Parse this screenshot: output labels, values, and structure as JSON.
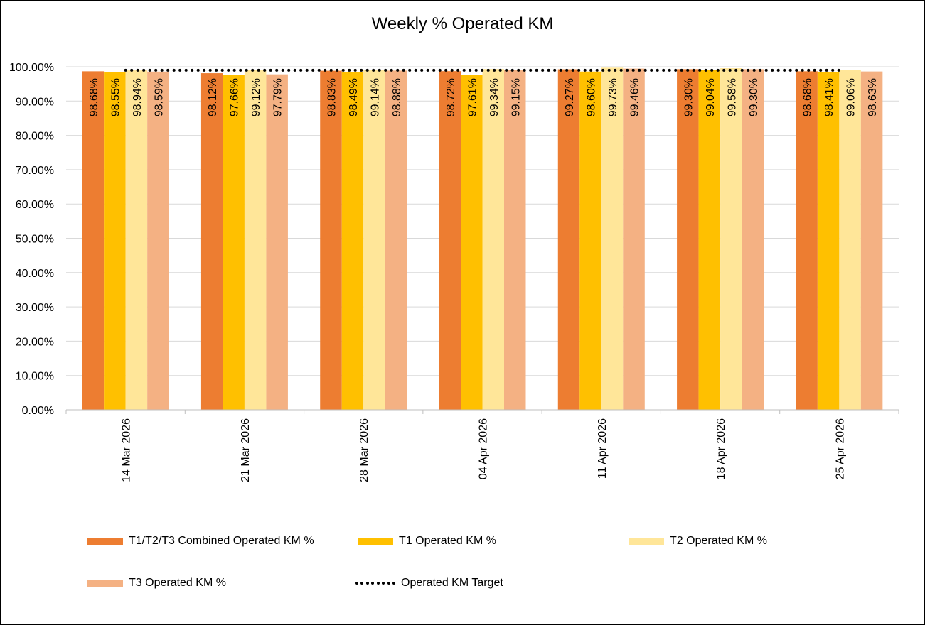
{
  "chart_data": {
    "type": "bar",
    "title": "Weekly % Operated KM",
    "categories": [
      "14 Mar 2026",
      "21 Mar 2026",
      "28 Mar 2026",
      "04 Apr 2026",
      "11 Apr 2026",
      "18 Apr 2026",
      "25 Apr 2026"
    ],
    "series": [
      {
        "name": "T1/T2/T3 Combined Operated KM %",
        "color": "#ED7D31",
        "values": [
          98.68,
          98.12,
          98.83,
          98.72,
          99.27,
          99.3,
          98.68
        ],
        "labels": [
          "98.68%",
          "98.12%",
          "98.83%",
          "98.72%",
          "99.27%",
          "99.30%",
          "98.68%"
        ]
      },
      {
        "name": "T1 Operated KM %",
        "color": "#FFC000",
        "values": [
          98.55,
          97.66,
          98.49,
          97.61,
          98.6,
          99.04,
          98.41
        ],
        "labels": [
          "98.55%",
          "97.66%",
          "98.49%",
          "97.61%",
          "98.60%",
          "99.04%",
          "98.41%"
        ]
      },
      {
        "name": "T2 Operated KM %",
        "color": "#FFE699",
        "values": [
          98.94,
          99.12,
          99.14,
          99.34,
          99.73,
          99.58,
          99.06
        ],
        "labels": [
          "98.94%",
          "99.12%",
          "99.14%",
          "99.34%",
          "99.73%",
          "99.58%",
          "99.06%"
        ]
      },
      {
        "name": "T3 Operated KM %",
        "color": "#F4B183",
        "values": [
          98.59,
          97.79,
          98.88,
          99.15,
          99.46,
          99.3,
          98.63
        ],
        "labels": [
          "98.59%",
          "97.79%",
          "98.88%",
          "99.15%",
          "99.46%",
          "99.30%",
          "98.63%"
        ]
      }
    ],
    "target": {
      "name": "Operated KM Target",
      "color": "#000000",
      "values": [
        99,
        99,
        99,
        99,
        99,
        99,
        99
      ]
    },
    "ylim": [
      0,
      100
    ],
    "yticks": [
      "0.00%",
      "10.00%",
      "20.00%",
      "30.00%",
      "40.00%",
      "50.00%",
      "60.00%",
      "70.00%",
      "80.00%",
      "90.00%",
      "100.00%"
    ],
    "xlabel": "",
    "ylabel": "",
    "grid": true,
    "legend_position": "bottom"
  }
}
